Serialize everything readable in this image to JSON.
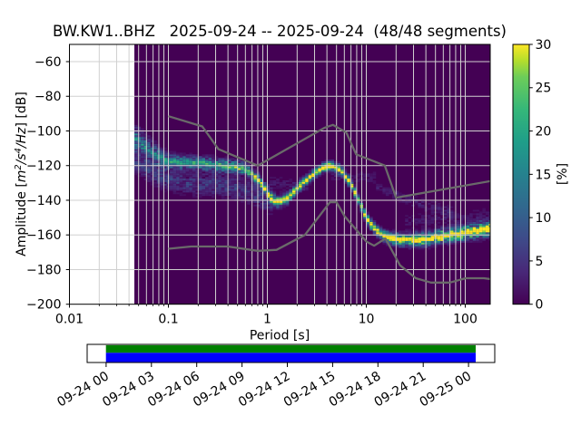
{
  "chart_data": {
    "type": "heatmap",
    "title": "BW.KW1..BHZ   2025-09-24 -- 2025-09-24  (48/48 segments)",
    "xlabel": "Period [s]",
    "ylabel": "Amplitude [m²/s⁴/Hz] [dB]",
    "ylabel_parts": [
      [
        "Amplitude [",
        0,
        0
      ],
      [
        "m",
        1,
        0
      ],
      [
        "2",
        1,
        1
      ],
      [
        "/s",
        1,
        0
      ],
      [
        "4",
        1,
        1
      ],
      [
        "/Hz",
        1,
        0
      ],
      [
        "] [dB]",
        0,
        0
      ]
    ],
    "x_axis": {
      "scale": "log",
      "lim": [
        0.01,
        180
      ],
      "ticks": [
        {
          "v": 0.01,
          "label": "0.01"
        },
        {
          "v": 0.1,
          "label": "0.1"
        },
        {
          "v": 1,
          "label": "1"
        },
        {
          "v": 10,
          "label": "10"
        },
        {
          "v": 100,
          "label": "100"
        }
      ]
    },
    "y_axis": {
      "lim": [
        -200,
        -50
      ],
      "ticks": [
        {
          "v": -60,
          "label": "−60"
        },
        {
          "v": -80,
          "label": "−80"
        },
        {
          "v": -100,
          "label": "−100"
        },
        {
          "v": -120,
          "label": "−120"
        },
        {
          "v": -140,
          "label": "−140"
        },
        {
          "v": -160,
          "label": "−160"
        },
        {
          "v": -180,
          "label": "−180"
        },
        {
          "v": -200,
          "label": "−200"
        }
      ]
    },
    "colorbar": {
      "label": "[%]",
      "vmin": 0,
      "vmax": 30,
      "cmap": "viridis",
      "ticks": [
        {
          "v": 0,
          "label": "0"
        },
        {
          "v": 5,
          "label": "5"
        },
        {
          "v": 10,
          "label": "10"
        },
        {
          "v": 15,
          "label": "15"
        },
        {
          "v": 20,
          "label": "20"
        },
        {
          "v": 25,
          "label": "25"
        },
        {
          "v": 30,
          "label": "30"
        }
      ]
    },
    "data_start_period_s": 0.045,
    "psd_mode_period_db": [
      [
        0.044,
        -104
      ],
      [
        0.05,
        -105.5
      ],
      [
        0.06,
        -110
      ],
      [
        0.07,
        -113
      ],
      [
        0.08,
        -115
      ],
      [
        0.09,
        -116.5
      ],
      [
        0.1,
        -117.5
      ],
      [
        0.13,
        -118
      ],
      [
        0.2,
        -118.5
      ],
      [
        0.3,
        -119.5
      ],
      [
        0.4,
        -120.5
      ],
      [
        0.5,
        -121
      ],
      [
        0.6,
        -122
      ],
      [
        0.7,
        -125
      ],
      [
        0.8,
        -128
      ],
      [
        0.9,
        -131.5
      ],
      [
        1.0,
        -136
      ],
      [
        1.1,
        -139.5
      ],
      [
        1.3,
        -141
      ],
      [
        1.6,
        -139
      ],
      [
        2.0,
        -133
      ],
      [
        2.5,
        -128.5
      ],
      [
        3.0,
        -124.5
      ],
      [
        3.7,
        -121
      ],
      [
        4.5,
        -120
      ],
      [
        5.5,
        -122.5
      ],
      [
        6.5,
        -128
      ],
      [
        7.5,
        -134
      ],
      [
        8.5,
        -141
      ],
      [
        10,
        -150
      ],
      [
        11.5,
        -155
      ],
      [
        13,
        -158
      ],
      [
        15,
        -160.5
      ],
      [
        18,
        -162
      ],
      [
        22,
        -162.8
      ],
      [
        30,
        -162.8
      ],
      [
        40,
        -162.4
      ],
      [
        55,
        -161
      ],
      [
        75,
        -159.8
      ],
      [
        100,
        -158.8
      ],
      [
        140,
        -157.3
      ],
      [
        180,
        -156.2
      ]
    ],
    "psd_mode_peak_percent": [
      [
        0.044,
        14
      ],
      [
        0.06,
        14
      ],
      [
        0.08,
        14
      ],
      [
        0.1,
        16
      ],
      [
        0.2,
        17
      ],
      [
        0.3,
        18
      ],
      [
        0.5,
        21
      ],
      [
        0.7,
        23
      ],
      [
        0.9,
        26
      ],
      [
        1.2,
        30
      ],
      [
        1.6,
        28
      ],
      [
        2,
        26
      ],
      [
        3,
        28
      ],
      [
        4,
        30
      ],
      [
        5,
        30
      ],
      [
        6,
        28
      ],
      [
        8,
        27
      ],
      [
        10,
        26
      ],
      [
        15,
        28
      ],
      [
        20,
        30
      ],
      [
        30,
        30
      ],
      [
        50,
        30
      ],
      [
        80,
        30
      ],
      [
        120,
        30
      ],
      [
        180,
        30
      ]
    ],
    "psd_spread_db": [
      [
        0.044,
        4.5
      ],
      [
        0.06,
        4
      ],
      [
        0.08,
        3.5
      ],
      [
        0.1,
        2.6
      ],
      [
        0.2,
        2.4
      ],
      [
        0.3,
        2.4
      ],
      [
        0.5,
        2.2
      ],
      [
        0.8,
        2.1
      ],
      [
        1.2,
        1.9
      ],
      [
        2,
        1.7
      ],
      [
        3,
        1.6
      ],
      [
        4.5,
        1.6
      ],
      [
        6,
        1.6
      ],
      [
        9,
        1.8
      ],
      [
        15,
        1.9
      ],
      [
        30,
        2.3
      ],
      [
        60,
        2.4
      ],
      [
        120,
        2.6
      ],
      [
        180,
        2.8
      ]
    ],
    "psd_secondary_band": {
      "p_max": 1.15,
      "sigma": 4.2,
      "peak": 5.5,
      "center": [
        [
          0.044,
          -116
        ],
        [
          0.06,
          -122
        ],
        [
          0.08,
          -126
        ],
        [
          0.1,
          -128
        ],
        [
          0.15,
          -130
        ],
        [
          0.2,
          -130.5
        ],
        [
          0.3,
          -131
        ],
        [
          0.4,
          -132
        ],
        [
          0.5,
          -133
        ],
        [
          0.6,
          -134.5
        ],
        [
          0.7,
          -136
        ],
        [
          0.8,
          -137.5
        ],
        [
          0.9,
          -139
        ],
        [
          1.0,
          -140.5
        ],
        [
          1.15,
          -141
        ]
      ]
    },
    "psd_faint_clouds": [
      {
        "p0": 1.0,
        "p1": 2.6,
        "sigma": 3,
        "peak": 2.0,
        "center": [
          [
            1,
            -130
          ],
          [
            2.6,
            -131
          ]
        ]
      },
      {
        "p0": 4.5,
        "p1": 13,
        "sigma": 2.2,
        "peak": 2.3,
        "center": [
          [
            4.5,
            -126
          ],
          [
            13,
            -127
          ]
        ]
      },
      {
        "p0": 13,
        "p1": 75,
        "sigma": 2.4,
        "peak": 2.6,
        "center": [
          [
            13,
            -133
          ],
          [
            30,
            -141
          ],
          [
            75,
            -147
          ]
        ]
      },
      {
        "p0": 25,
        "p1": 180,
        "sigma": 2.6,
        "peak": 2.0,
        "center": [
          [
            25,
            -152
          ],
          [
            60,
            -151
          ],
          [
            180,
            -148
          ]
        ]
      }
    ],
    "noise_models": {
      "high_nhnm_period_db": [
        [
          0.1,
          -91.5
        ],
        [
          0.22,
          -97.4
        ],
        [
          0.32,
          -110.5
        ],
        [
          0.8,
          -120
        ],
        [
          3.8,
          -98.1
        ],
        [
          4.6,
          -96.5
        ],
        [
          6.3,
          -101
        ],
        [
          7.9,
          -113.5
        ],
        [
          15.4,
          -120
        ],
        [
          20,
          -138.5
        ],
        [
          354.8,
          -126
        ]
      ],
      "low_nlnm_period_db": [
        [
          0.1,
          -168
        ],
        [
          0.17,
          -166.7
        ],
        [
          0.4,
          -166.7
        ],
        [
          0.8,
          -169.2
        ],
        [
          1.24,
          -168.6
        ],
        [
          2.4,
          -160
        ],
        [
          4.3,
          -141.1
        ],
        [
          5,
          -141.1
        ],
        [
          6,
          -149
        ],
        [
          10,
          -163.8
        ],
        [
          12,
          -166.2
        ],
        [
          15.6,
          -162.1
        ],
        [
          21.9,
          -177.5
        ],
        [
          31.6,
          -185
        ],
        [
          45,
          -187.5
        ],
        [
          70,
          -187.5
        ],
        [
          101,
          -185
        ],
        [
          154,
          -185
        ],
        [
          328,
          -187.5
        ]
      ]
    },
    "timeline": {
      "tick_labels": [
        "09-24 00",
        "09-24 03",
        "09-24 06",
        "09-24 09",
        "09-24 12",
        "09-24 15",
        "09-24 18",
        "09-24 21",
        "09-25 00"
      ],
      "coverage_bar_colors": [
        "#008000",
        "#0000ff"
      ]
    }
  },
  "colors": {
    "plot_background": "#440154",
    "grid": "#d0d0d0",
    "noise_model": "#6a6a6a",
    "spine": "#000000"
  }
}
